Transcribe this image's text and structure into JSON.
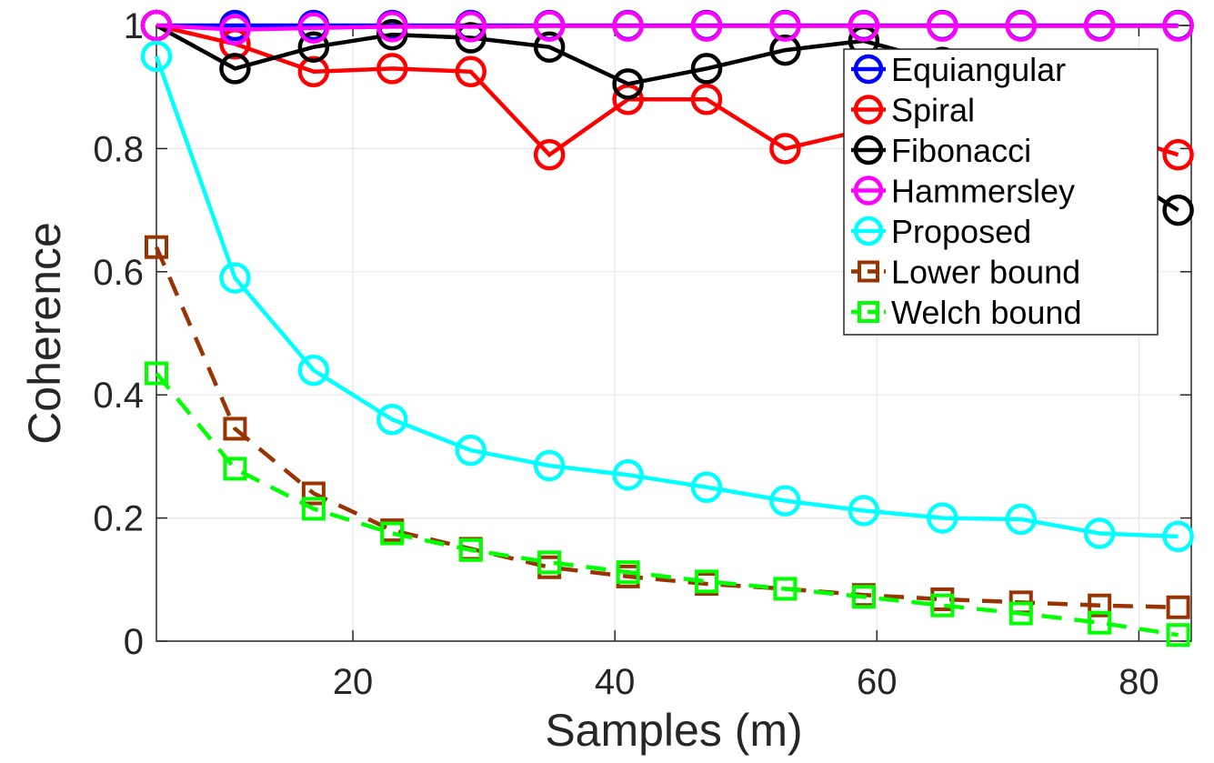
{
  "chart_data": {
    "type": "line",
    "xlabel": "Samples (m)",
    "ylabel": "Coherence",
    "xlim": [
      5,
      84
    ],
    "ylim": [
      0,
      1
    ],
    "xticks": [
      20,
      40,
      60,
      80
    ],
    "xtick_labels": [
      "20",
      "40",
      "60",
      "80"
    ],
    "yticks": [
      0,
      0.2,
      0.4,
      0.6,
      0.8,
      1
    ],
    "ytick_labels": [
      "0",
      "0.2",
      "0.4",
      "0.6",
      "0.8",
      "1"
    ],
    "grid": true,
    "legend_position": "top-right",
    "x": [
      5,
      11,
      17,
      23,
      29,
      35,
      41,
      47,
      53,
      59,
      65,
      71,
      77,
      83
    ],
    "series": [
      {
        "name": "Equiangular",
        "color": "#0000ff",
        "marker": "circle",
        "dash": "solid",
        "values": [
          1,
          1,
          1,
          1,
          1,
          1,
          1,
          1,
          1,
          1,
          1,
          1,
          1,
          1
        ]
      },
      {
        "name": "Spiral",
        "color": "#ff0000",
        "marker": "circle",
        "dash": "solid",
        "values": [
          1,
          0.97,
          0.925,
          0.93,
          0.925,
          0.79,
          0.88,
          0.88,
          0.8,
          0.83,
          0.85,
          0.84,
          0.83,
          0.79
        ]
      },
      {
        "name": "Fibonacci",
        "color": "#000000",
        "marker": "circle",
        "dash": "solid",
        "values": [
          1,
          0.93,
          0.965,
          0.985,
          0.98,
          0.965,
          0.905,
          0.93,
          0.96,
          0.975,
          0.94,
          0.88,
          0.78,
          0.7
        ]
      },
      {
        "name": "Hammersley",
        "color": "#ff00ff",
        "marker": "circle",
        "dash": "solid",
        "values": [
          1,
          0.993,
          0.996,
          0.998,
          0.998,
          0.999,
          0.999,
          0.999,
          0.999,
          0.999,
          0.999,
          0.999,
          0.999,
          0.999
        ]
      },
      {
        "name": "Proposed",
        "color": "#00ffff",
        "marker": "circle",
        "dash": "solid",
        "values": [
          0.95,
          0.59,
          0.44,
          0.36,
          0.31,
          0.285,
          0.27,
          0.25,
          0.228,
          0.212,
          0.2,
          0.198,
          0.175,
          0.17
        ]
      },
      {
        "name": "Lower bound",
        "color": "#993300",
        "marker": "square",
        "dash": "dashed",
        "values": [
          0.64,
          0.345,
          0.24,
          0.18,
          0.15,
          0.12,
          0.105,
          0.093,
          0.085,
          0.075,
          0.068,
          0.063,
          0.058,
          0.055
        ]
      },
      {
        "name": "Welch bound",
        "color": "#00ff00",
        "marker": "square",
        "dash": "dashed",
        "values": [
          0.435,
          0.28,
          0.215,
          0.175,
          0.148,
          0.128,
          0.112,
          0.097,
          0.085,
          0.072,
          0.058,
          0.045,
          0.03,
          0.01
        ]
      }
    ]
  }
}
